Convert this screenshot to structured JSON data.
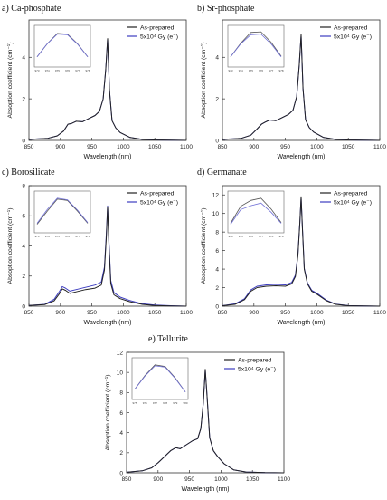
{
  "series_styles": {
    "as_prepared_color": "#222222",
    "irradiated_color": "#3b3bbf"
  },
  "chart_data": [
    {
      "type": "line",
      "title": "a) Ca-phosphate",
      "xlabel": "Wavelength (nm)",
      "ylabel": "Absoption coefficient (cm⁻¹)",
      "xlim": [
        850,
        1100
      ],
      "ylim": [
        0,
        5.8
      ],
      "xticks": [
        850,
        900,
        950,
        1000,
        1050,
        1100
      ],
      "yticks": [
        0,
        2,
        4
      ],
      "legend": "top-right",
      "series": [
        {
          "name": "As-prepared",
          "x": [
            850,
            880,
            895,
            905,
            912,
            918,
            925,
            935,
            945,
            955,
            962,
            968,
            972,
            975,
            978,
            982,
            988,
            995,
            1010,
            1030,
            1050,
            1075,
            1100
          ],
          "y": [
            0.05,
            0.1,
            0.22,
            0.45,
            0.78,
            0.82,
            0.92,
            0.9,
            1.05,
            1.2,
            1.4,
            2.0,
            3.4,
            4.9,
            2.4,
            0.95,
            0.6,
            0.38,
            0.15,
            0.05,
            0.02,
            0.01,
            0.0
          ]
        },
        {
          "name": "5x10⁴ Gy (e⁻)",
          "x": [
            850,
            880,
            895,
            905,
            912,
            918,
            925,
            935,
            945,
            955,
            962,
            968,
            972,
            975,
            978,
            982,
            988,
            995,
            1010,
            1030,
            1050,
            1075,
            1100
          ],
          "y": [
            0.05,
            0.1,
            0.22,
            0.45,
            0.78,
            0.82,
            0.92,
            0.9,
            1.05,
            1.2,
            1.4,
            2.0,
            3.4,
            4.88,
            2.4,
            0.95,
            0.6,
            0.38,
            0.15,
            0.05,
            0.02,
            0.01,
            0.0
          ]
        }
      ],
      "inset": {
        "x": [
          973,
          974,
          975,
          976,
          977,
          978
        ],
        "xticks": [
          973,
          974,
          975,
          976,
          977,
          978
        ],
        "series": [
          [
            0.2,
            0.6,
            0.92,
            0.9,
            0.6,
            0.2
          ],
          [
            0.2,
            0.6,
            0.9,
            0.88,
            0.59,
            0.2
          ]
        ]
      }
    },
    {
      "type": "line",
      "title": "b) Sr-phosphate",
      "xlabel": "Wavelength (nm)",
      "ylabel": "Absoption coefficient (cm⁻¹)",
      "xlim": [
        850,
        1100
      ],
      "ylim": [
        0,
        5.8
      ],
      "xticks": [
        850,
        900,
        950,
        1000,
        1050,
        1100
      ],
      "yticks": [
        0,
        2,
        4
      ],
      "legend": "top-right",
      "series": [
        {
          "name": "As-prepared",
          "x": [
            850,
            880,
            895,
            905,
            912,
            918,
            925,
            935,
            945,
            955,
            962,
            968,
            972,
            975,
            978,
            982,
            988,
            995,
            1010,
            1030,
            1050,
            1075,
            1100
          ],
          "y": [
            0.05,
            0.1,
            0.25,
            0.55,
            0.78,
            0.88,
            0.98,
            0.95,
            1.1,
            1.25,
            1.45,
            2.1,
            3.6,
            5.1,
            2.5,
            1.0,
            0.62,
            0.4,
            0.15,
            0.05,
            0.02,
            0.01,
            0.0
          ]
        },
        {
          "name": "5x10⁴ Gy (e⁻)",
          "x": [
            850,
            880,
            895,
            905,
            912,
            918,
            925,
            935,
            945,
            955,
            962,
            968,
            972,
            975,
            978,
            982,
            988,
            995,
            1010,
            1030,
            1050,
            1075,
            1100
          ],
          "y": [
            0.05,
            0.1,
            0.25,
            0.55,
            0.78,
            0.88,
            0.98,
            0.95,
            1.1,
            1.25,
            1.45,
            2.1,
            3.6,
            5.05,
            2.5,
            1.0,
            0.62,
            0.4,
            0.15,
            0.05,
            0.02,
            0.01,
            0.0
          ]
        }
      ],
      "inset": {
        "x": [
          973,
          974,
          975,
          976,
          977,
          978
        ],
        "xticks": [
          973,
          974,
          975,
          976,
          977,
          978
        ],
        "series": [
          [
            0.2,
            0.62,
            0.95,
            0.97,
            0.65,
            0.22
          ],
          [
            0.2,
            0.6,
            0.88,
            0.9,
            0.6,
            0.2
          ]
        ]
      }
    },
    {
      "type": "line",
      "title": "c) Borosilicate",
      "xlabel": "Wavelength (nm)",
      "ylabel": "Absoption coefficient (cm⁻¹)",
      "xlim": [
        850,
        1100
      ],
      "ylim": [
        0,
        8
      ],
      "xticks": [
        850,
        900,
        950,
        1000,
        1050,
        1100
      ],
      "yticks": [
        0,
        2,
        4,
        6,
        8
      ],
      "legend": "top-right",
      "series": [
        {
          "name": "As-prepared",
          "x": [
            850,
            875,
            890,
            898,
            903,
            908,
            915,
            925,
            940,
            955,
            965,
            970,
            973,
            975,
            977,
            980,
            985,
            995,
            1010,
            1030,
            1050,
            1075,
            1100
          ],
          "y": [
            0.05,
            0.1,
            0.35,
            0.8,
            1.15,
            1.05,
            0.85,
            0.95,
            1.1,
            1.2,
            1.4,
            2.4,
            4.6,
            6.6,
            4.2,
            1.5,
            0.75,
            0.5,
            0.3,
            0.12,
            0.05,
            0.02,
            0.0
          ]
        },
        {
          "name": "5x10⁴ Gy (e⁻)",
          "x": [
            850,
            875,
            890,
            898,
            903,
            908,
            915,
            925,
            940,
            955,
            965,
            970,
            973,
            975,
            977,
            980,
            985,
            995,
            1010,
            1030,
            1050,
            1075,
            1100
          ],
          "y": [
            0.05,
            0.12,
            0.45,
            0.95,
            1.3,
            1.2,
            1.0,
            1.1,
            1.25,
            1.4,
            1.6,
            2.6,
            4.8,
            6.65,
            4.4,
            1.7,
            0.9,
            0.6,
            0.38,
            0.16,
            0.07,
            0.03,
            0.0
          ]
        }
      ],
      "inset": {
        "x": [
          973,
          974,
          975,
          976,
          977,
          978
        ],
        "xticks": [
          973,
          974,
          975,
          976,
          977,
          978
        ],
        "series": [
          [
            0.15,
            0.55,
            0.92,
            0.88,
            0.55,
            0.18
          ],
          [
            0.18,
            0.6,
            0.95,
            0.9,
            0.58,
            0.2
          ]
        ]
      }
    },
    {
      "type": "line",
      "title": "d) Germanate",
      "xlabel": "Wavelength (nm)",
      "ylabel": "Absoption coefficient (cm⁻¹)",
      "xlim": [
        850,
        1100
      ],
      "ylim": [
        0,
        13
      ],
      "xticks": [
        850,
        900,
        950,
        1000,
        1050,
        1100
      ],
      "yticks": [
        0,
        2,
        4,
        6,
        8,
        10,
        12
      ],
      "legend": "top-right",
      "series": [
        {
          "name": "As-prepared",
          "x": [
            850,
            870,
            885,
            895,
            905,
            920,
            935,
            950,
            960,
            966,
            970,
            973,
            975,
            977,
            980,
            985,
            992,
            1000,
            1015,
            1030,
            1050,
            1075,
            1100
          ],
          "y": [
            0.05,
            0.2,
            0.7,
            1.6,
            2.0,
            2.15,
            2.2,
            2.15,
            2.4,
            3.2,
            5.5,
            9.0,
            11.8,
            8.5,
            4.0,
            2.4,
            1.6,
            1.3,
            0.6,
            0.2,
            0.05,
            0.02,
            0.0
          ]
        },
        {
          "name": "5x10⁴ Gy (e⁻)",
          "x": [
            850,
            870,
            885,
            895,
            905,
            920,
            935,
            950,
            960,
            966,
            970,
            973,
            975,
            977,
            980,
            985,
            992,
            1000,
            1015,
            1030,
            1050,
            1075,
            1100
          ],
          "y": [
            0.05,
            0.25,
            0.8,
            1.75,
            2.15,
            2.3,
            2.35,
            2.3,
            2.55,
            3.35,
            5.6,
            9.0,
            11.7,
            8.6,
            4.1,
            2.5,
            1.7,
            1.4,
            0.65,
            0.22,
            0.06,
            0.02,
            0.0
          ]
        }
      ],
      "inset": {
        "x": [
          974,
          975,
          976,
          977,
          978,
          979
        ],
        "xticks": [
          974,
          975,
          976,
          977,
          978,
          979
        ],
        "series": [
          [
            0.18,
            0.7,
            0.88,
            0.95,
            0.62,
            0.2
          ],
          [
            0.15,
            0.6,
            0.72,
            0.8,
            0.52,
            0.18
          ]
        ]
      }
    },
    {
      "type": "line",
      "title": "e) Tellurite",
      "xlabel": "Wavelength (nm)",
      "ylabel": "Absoption coefficient (cm⁻¹)",
      "xlim": [
        850,
        1100
      ],
      "ylim": [
        0,
        12
      ],
      "xticks": [
        850,
        900,
        950,
        1000,
        1050,
        1100
      ],
      "yticks": [
        0,
        2,
        4,
        6,
        8,
        10,
        12
      ],
      "legend": "top-right",
      "series": [
        {
          "name": "As-prepared",
          "x": [
            850,
            875,
            890,
            900,
            910,
            920,
            928,
            935,
            945,
            955,
            963,
            968,
            972,
            975,
            978,
            982,
            988,
            995,
            1005,
            1020,
            1040,
            1070,
            1100
          ],
          "y": [
            0.05,
            0.2,
            0.5,
            1.0,
            1.6,
            2.2,
            2.5,
            2.4,
            2.8,
            3.2,
            3.4,
            4.4,
            7.0,
            10.3,
            7.5,
            3.5,
            2.2,
            1.6,
            0.9,
            0.3,
            0.08,
            0.02,
            0.0
          ]
        },
        {
          "name": "5x10⁴ Gy (e⁻)",
          "x": [
            850,
            875,
            890,
            900,
            910,
            920,
            928,
            935,
            945,
            955,
            963,
            968,
            972,
            975,
            978,
            982,
            988,
            995,
            1005,
            1020,
            1040,
            1070,
            1100
          ],
          "y": [
            0.05,
            0.2,
            0.5,
            1.0,
            1.6,
            2.2,
            2.5,
            2.4,
            2.8,
            3.2,
            3.4,
            4.4,
            7.0,
            10.25,
            7.5,
            3.5,
            2.2,
            1.6,
            0.9,
            0.3,
            0.08,
            0.02,
            0.0
          ]
        }
      ],
      "inset": {
        "x": [
          975,
          976,
          977,
          978,
          979,
          980
        ],
        "xticks": [
          975,
          976,
          977,
          978,
          979,
          980
        ],
        "series": [
          [
            0.2,
            0.62,
            0.95,
            0.9,
            0.55,
            0.12
          ],
          [
            0.2,
            0.6,
            0.92,
            0.88,
            0.53,
            0.12
          ]
        ]
      }
    }
  ]
}
